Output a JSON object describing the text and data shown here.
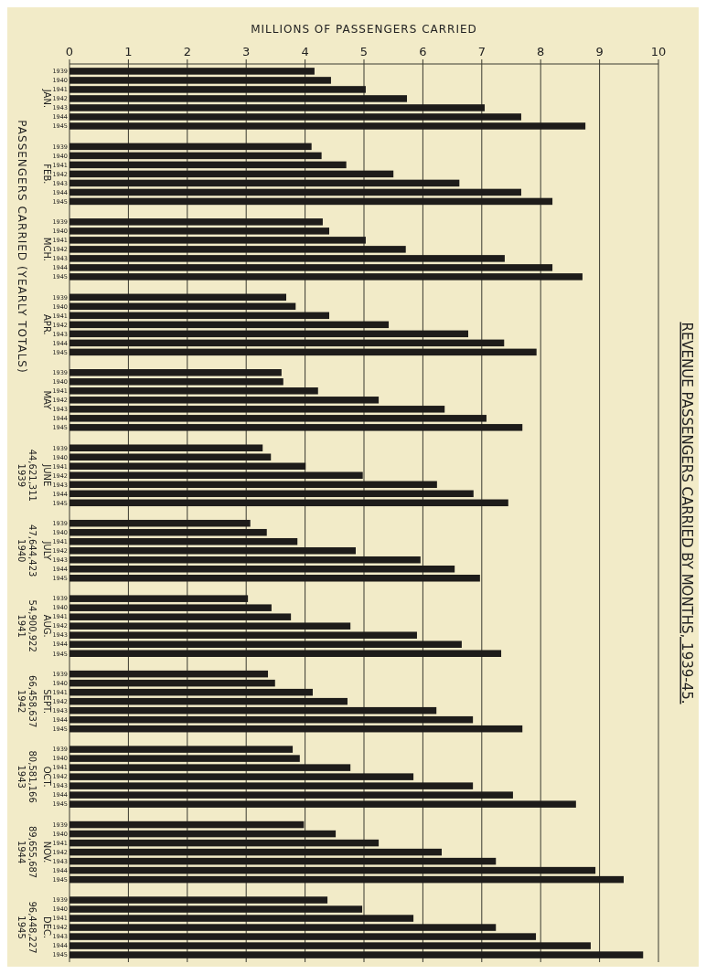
{
  "chart_data": {
    "type": "bar",
    "orientation": "horizontal",
    "title": "REVENUE PASSENGERS CARRIED BY MONTHS, 1939-45.",
    "xlabel": "MILLIONS OF PASSENGERS CARRIED",
    "categories": [
      "JAN.",
      "FEB.",
      "MCH.",
      "APR.",
      "MAY",
      "JUNE",
      "JULY",
      "AUG.",
      "SEPT.",
      "OCT.",
      "NOV.",
      "DEC."
    ],
    "series": [
      {
        "name": "1939",
        "color": "#1e1c1a",
        "values": [
          4.16,
          4.11,
          4.3,
          3.68,
          3.6,
          3.28,
          3.07,
          3.03,
          3.37,
          3.79,
          3.98,
          4.38
        ]
      },
      {
        "name": "1940",
        "color": "#1e1c1a",
        "values": [
          4.44,
          4.28,
          4.41,
          3.84,
          3.63,
          3.42,
          3.35,
          3.43,
          3.49,
          3.91,
          4.52,
          4.97
        ]
      },
      {
        "name": "1941",
        "color": "#1e1c1a",
        "values": [
          5.03,
          4.7,
          5.03,
          4.41,
          4.22,
          4.01,
          3.87,
          3.76,
          4.13,
          4.77,
          5.25,
          5.84
        ]
      },
      {
        "name": "1942",
        "color": "#1e1c1a",
        "values": [
          5.73,
          5.5,
          5.71,
          5.42,
          5.25,
          4.98,
          4.86,
          4.77,
          4.72,
          5.84,
          6.32,
          7.24
        ]
      },
      {
        "name": "1943",
        "color": "#1e1c1a",
        "values": [
          7.05,
          6.62,
          7.39,
          6.77,
          6.37,
          6.24,
          5.96,
          5.9,
          6.23,
          6.85,
          7.24,
          7.92
        ]
      },
      {
        "name": "1944",
        "color": "#1e1c1a",
        "values": [
          7.67,
          7.67,
          8.2,
          7.38,
          7.08,
          6.86,
          6.54,
          6.66,
          6.85,
          7.53,
          8.93,
          8.85
        ]
      },
      {
        "name": "1945",
        "color": "#1e1c1a",
        "values": [
          8.76,
          8.2,
          8.71,
          7.93,
          7.69,
          7.45,
          6.97,
          7.33,
          7.69,
          8.6,
          9.41,
          9.74
        ]
      }
    ],
    "xlim": [
      0,
      10
    ],
    "xticks": [
      0,
      1,
      2,
      3,
      4,
      5,
      6,
      7,
      8,
      9,
      10
    ],
    "grid": "x",
    "annotations": [
      "PASSENGERS CARRIED (YEARLY TOTALS)",
      "1939 44,621,311",
      "1940 47,644,423",
      "1941 54,900,922",
      "1942 66,458,637",
      "1943 80,581,166",
      "1944 89,655,687",
      "1945 96,448,227"
    ]
  }
}
